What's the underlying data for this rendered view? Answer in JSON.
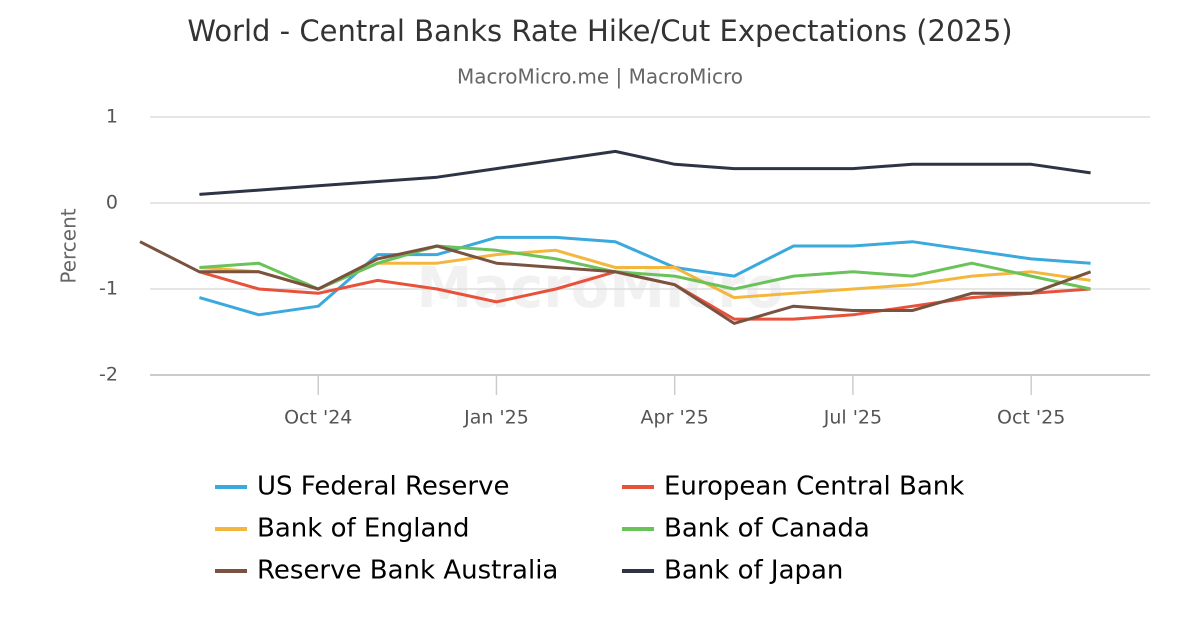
{
  "chart_data": {
    "type": "line",
    "title": "World - Central Banks Rate Hike/Cut Expectations (2025)",
    "subtitle": "MacroMicro.me | MacroMicro",
    "watermark": "MacroMicro",
    "y_label": "Percent",
    "x": [
      "2024-07",
      "2024-08",
      "2024-09",
      "2024-10",
      "2024-11",
      "2024-12",
      "2025-01",
      "2025-02",
      "2025-03",
      "2025-04",
      "2025-05",
      "2025-06",
      "2025-07",
      "2025-08",
      "2025-09",
      "2025-10",
      "2025-11"
    ],
    "xlim": [
      "2024-07",
      "2025-12"
    ],
    "xticks": [
      {
        "value": "2024-10",
        "label": "Oct '24"
      },
      {
        "value": "2025-01",
        "label": "Jan '25"
      },
      {
        "value": "2025-04",
        "label": "Apr '25"
      },
      {
        "value": "2025-07",
        "label": "Jul '25"
      },
      {
        "value": "2025-10",
        "label": "Oct '25"
      }
    ],
    "ylim": [
      -2,
      1
    ],
    "yticks": [
      -2,
      -1,
      0,
      1
    ],
    "grid": true,
    "legend": "bottom",
    "series": [
      {
        "name": "US Federal Reserve",
        "color": "#3aa9dd",
        "values": [
          null,
          -1.1,
          -1.3,
          -1.2,
          -0.6,
          -0.6,
          -0.4,
          -0.4,
          -0.45,
          -0.75,
          -0.85,
          -0.5,
          -0.5,
          -0.45,
          -0.55,
          -0.65,
          -0.7
        ]
      },
      {
        "name": "European Central Bank",
        "color": "#e8513a",
        "values": [
          null,
          -0.8,
          -1.0,
          -1.05,
          -0.9,
          -1.0,
          -1.15,
          -1.0,
          -0.8,
          -0.95,
          -1.35,
          -1.35,
          -1.3,
          -1.2,
          -1.1,
          -1.05,
          -1.0
        ]
      },
      {
        "name": "Bank of England",
        "color": "#f4b73d",
        "values": [
          null,
          -0.75,
          -0.8,
          -1.0,
          -0.7,
          -0.7,
          -0.6,
          -0.55,
          -0.75,
          -0.75,
          -1.1,
          -1.05,
          -1.0,
          -0.95,
          -0.85,
          -0.8,
          -0.9
        ]
      },
      {
        "name": "Bank of Canada",
        "color": "#6ac25a",
        "values": [
          null,
          -0.75,
          -0.7,
          -1.0,
          -0.7,
          -0.5,
          -0.55,
          -0.65,
          -0.8,
          -0.85,
          -1.0,
          -0.85,
          -0.8,
          -0.85,
          -0.7,
          -0.85,
          -1.0
        ]
      },
      {
        "name": "Reserve Bank Australia",
        "color": "#7a5240",
        "values": [
          -0.45,
          -0.8,
          -0.8,
          -1.0,
          -0.65,
          -0.5,
          -0.7,
          -0.75,
          -0.8,
          -0.95,
          -1.4,
          -1.2,
          -1.25,
          -1.25,
          -1.05,
          -1.05,
          -0.8
        ]
      },
      {
        "name": "Bank of Japan",
        "color": "#2e3446",
        "values": [
          null,
          0.1,
          0.15,
          0.2,
          0.25,
          0.3,
          0.4,
          0.5,
          0.6,
          0.45,
          0.4,
          0.4,
          0.4,
          0.45,
          0.45,
          0.45,
          0.35
        ]
      }
    ]
  }
}
